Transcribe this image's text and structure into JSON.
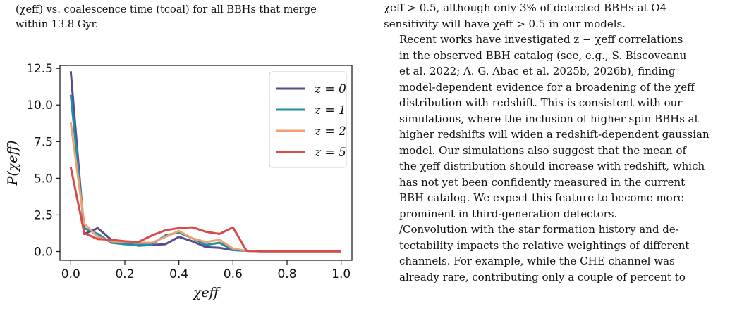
{
  "left_caption": {
    "line1": "(χeff) vs. coalescence time (tcoal) for all BBHs that merge",
    "line2": "within 13.8 Gyr."
  },
  "right_text": {
    "lines": [
      "χeff > 0.5, although only 3% of detected BBHs at O4",
      "sensitivity will have χeff > 0.5 in our models."
    ],
    "para2": [
      "Recent works have investigated z − χeff correlations",
      "in the observed BBH catalog (see, e.g., S. Biscoveanu",
      "et al. 2022; A. G. Abac et al. 2025b, 2026b), finding",
      "model-dependent evidence for a broadening of the χeff",
      "distribution with redshift. This is consistent with our",
      "simulations, where the inclusion of higher spin BBHs at",
      "higher redshifts will widen a redshift-dependent gaussian",
      "model. Our simulations also suggest that the mean of",
      "the χeff distribution should increase with redshift, which",
      "has not yet been confidently measured in the current",
      "BBH catalog. We expect this feature to become more",
      "prominent in third-generation detectors."
    ],
    "para3": [
      "/Convolution with the star formation history and de-",
      "tectability impacts the relative weightings of different",
      "channels. For example, while the CHE channel was",
      "already rare, contributing only a couple of percent to"
    ]
  },
  "chart_data": {
    "type": "line",
    "xlabel": "χeff",
    "ylabel": "P(χeff)",
    "xlim": [
      -0.04,
      1.04
    ],
    "ylim": [
      -0.6,
      12.7
    ],
    "xticks": [
      0.0,
      0.2,
      0.4,
      0.6,
      0.8,
      1.0
    ],
    "xtick_labels": [
      "0.0",
      "0.2",
      "0.4",
      "0.6",
      "0.8",
      "1.0"
    ],
    "yticks": [
      0.0,
      2.5,
      5.0,
      7.5,
      10.0,
      12.5
    ],
    "ytick_labels": [
      "0.0",
      "2.5",
      "5.0",
      "7.5",
      "10.0",
      "12.5"
    ],
    "grid": false,
    "legend_position": "top-right",
    "x": [
      0.0,
      0.05,
      0.1,
      0.15,
      0.2,
      0.25,
      0.3,
      0.35,
      0.4,
      0.45,
      0.5,
      0.55,
      0.6,
      0.65,
      0.7,
      0.75,
      0.8,
      0.85,
      0.9,
      0.95,
      1.0
    ],
    "series": [
      {
        "name": "z = 0",
        "color": "#5b4a8b",
        "values": [
          12.3,
          1.2,
          1.6,
          0.8,
          0.6,
          0.4,
          0.45,
          0.5,
          1.0,
          0.7,
          0.3,
          0.25,
          0.1,
          0.05,
          0.02,
          0.02,
          0.02,
          0.02,
          0.02,
          0.02,
          0.02
        ]
      },
      {
        "name": "z = 1",
        "color": "#1f8fa8",
        "values": [
          10.7,
          1.6,
          1.2,
          0.6,
          0.5,
          0.45,
          0.5,
          1.1,
          1.3,
          0.9,
          0.45,
          0.6,
          0.1,
          0.05,
          0.02,
          0.02,
          0.02,
          0.02,
          0.02,
          0.02,
          0.02
        ]
      },
      {
        "name": "z = 2",
        "color": "#f0a072",
        "values": [
          8.8,
          1.9,
          1.0,
          0.7,
          0.65,
          0.6,
          0.6,
          1.0,
          1.4,
          0.9,
          0.65,
          0.8,
          0.2,
          0.05,
          0.02,
          0.02,
          0.02,
          0.02,
          0.02,
          0.02,
          0.02
        ]
      },
      {
        "name": "z = 5",
        "color": "#d94a4a",
        "values": [
          5.75,
          1.25,
          0.85,
          0.8,
          0.7,
          0.65,
          1.1,
          1.45,
          1.6,
          1.65,
          1.35,
          1.2,
          1.65,
          0.05,
          0.02,
          0.02,
          0.02,
          0.02,
          0.02,
          0.02,
          0.02
        ]
      }
    ]
  }
}
